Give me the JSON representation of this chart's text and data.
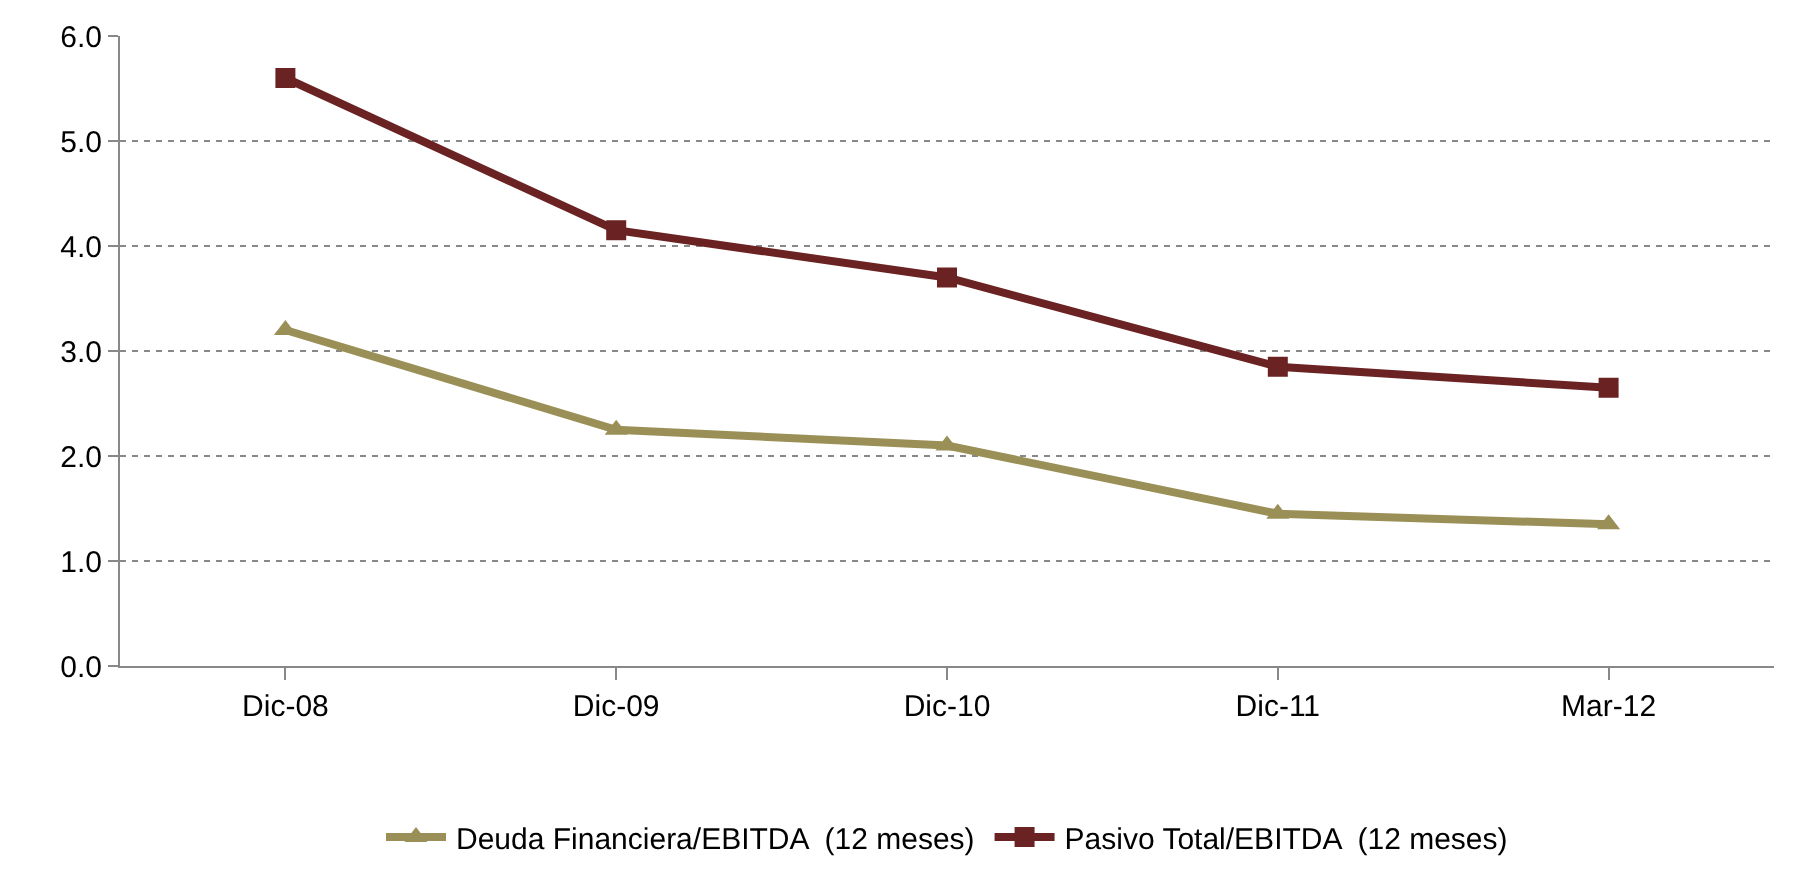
{
  "chart_data": {
    "type": "line",
    "categories": [
      "Dic-08",
      "Dic-09",
      "Dic-10",
      "Dic-11",
      "Mar-12"
    ],
    "series": [
      {
        "name": "Deuda Financiera/EBITDA  (12 meses)",
        "color": "#9a9057",
        "marker": "triangle",
        "values": [
          3.2,
          2.25,
          2.1,
          1.45,
          1.35
        ]
      },
      {
        "name": "Pasivo Total/EBITDA  (12 meses)",
        "color": "#6b2222",
        "marker": "square",
        "values": [
          5.6,
          4.15,
          3.7,
          2.85,
          2.65
        ]
      }
    ],
    "ylim": [
      0,
      6
    ],
    "yticks": [
      {
        "value": 0,
        "label": "0.0"
      },
      {
        "value": 1,
        "label": "1.0"
      },
      {
        "value": 2,
        "label": "2.0"
      },
      {
        "value": 3,
        "label": "3.0"
      },
      {
        "value": 4,
        "label": "4.0"
      },
      {
        "value": 5,
        "label": "5.0"
      },
      {
        "value": 6,
        "label": "6.0"
      }
    ],
    "grid": "y",
    "legend": "bottom",
    "line_style": "solid"
  }
}
